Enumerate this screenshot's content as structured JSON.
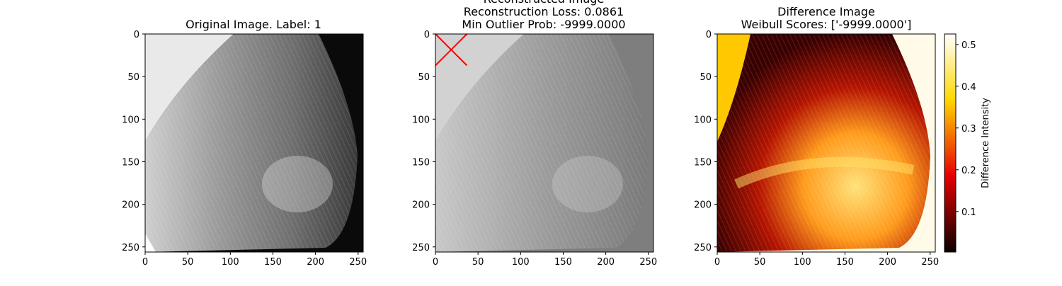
{
  "panels": [
    {
      "title_lines": [
        "Original Image. Label: 1"
      ],
      "x_ticks": [
        0,
        50,
        100,
        150,
        200,
        250
      ],
      "y_ticks": [
        0,
        50,
        100,
        150,
        200,
        250
      ],
      "xlim": [
        0,
        256
      ],
      "ylim": [
        256,
        0
      ],
      "image_style": "grayscale-original"
    },
    {
      "title_lines": [
        "Reconstructed Image",
        "Reconstruction Loss: 0.0861",
        "Min Outlier Prob: -9999.0000"
      ],
      "x_ticks": [
        0,
        50,
        100,
        150,
        200,
        250
      ],
      "y_ticks": [
        0,
        50,
        100,
        150,
        200,
        250
      ],
      "xlim": [
        0,
        256
      ],
      "ylim": [
        256,
        0
      ],
      "image_style": "grayscale-reconstructed",
      "marker": {
        "shape": "x",
        "color": "#ff0000",
        "x_range": [
          0,
          37
        ],
        "y_range": [
          0,
          37
        ]
      }
    },
    {
      "title_lines": [
        "Difference Image",
        "Weibull Scores: ['-9999.0000']"
      ],
      "x_ticks": [
        0,
        50,
        100,
        150,
        200,
        250
      ],
      "y_ticks": [
        0,
        50,
        100,
        150,
        200,
        250
      ],
      "xlim": [
        0,
        256
      ],
      "ylim": [
        256,
        0
      ],
      "image_style": "hot-colormap"
    }
  ],
  "colorbar": {
    "label": "Difference Intensity",
    "ticks": [
      0.1,
      0.2,
      0.3,
      0.4,
      0.5
    ],
    "range": [
      0.003,
      0.525
    ],
    "colormap": "hot"
  }
}
